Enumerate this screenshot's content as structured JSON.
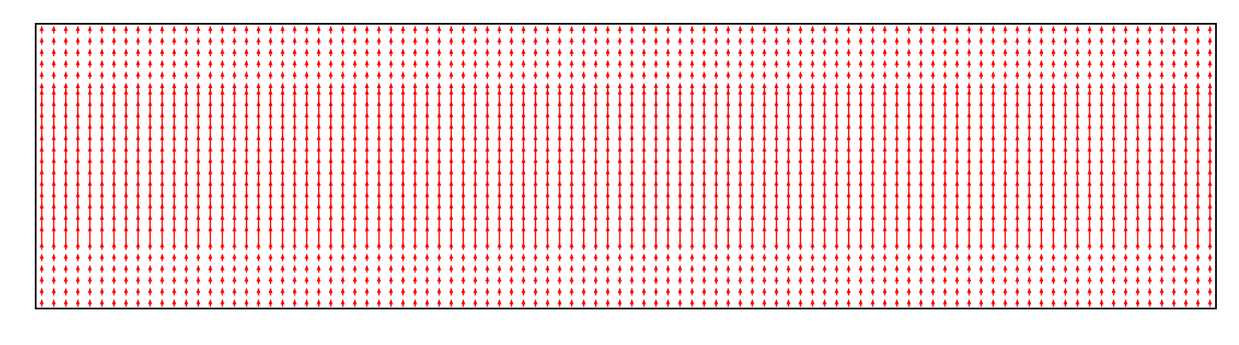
{
  "chart_data": {
    "type": "quiver",
    "title": "",
    "xlabel": "",
    "ylabel": "",
    "grid": false,
    "axes_ticks": "none",
    "arrow_color": "#ff0000",
    "arrow_direction": "up",
    "columns": 98,
    "rows": 25,
    "xlim": [
      0,
      98
    ],
    "ylim": [
      0,
      25
    ],
    "magnitude_by_row_from_bottom": [
      0.45,
      0.45,
      0.45,
      0.45,
      0.45,
      0.45,
      1.0,
      1.0,
      1.0,
      1.0,
      1.0,
      1.0,
      1.0,
      1.0,
      1.0,
      1.0,
      1.0,
      1.0,
      1.0,
      0.45,
      0.45,
      0.45,
      0.45,
      0.45,
      0.45
    ]
  }
}
